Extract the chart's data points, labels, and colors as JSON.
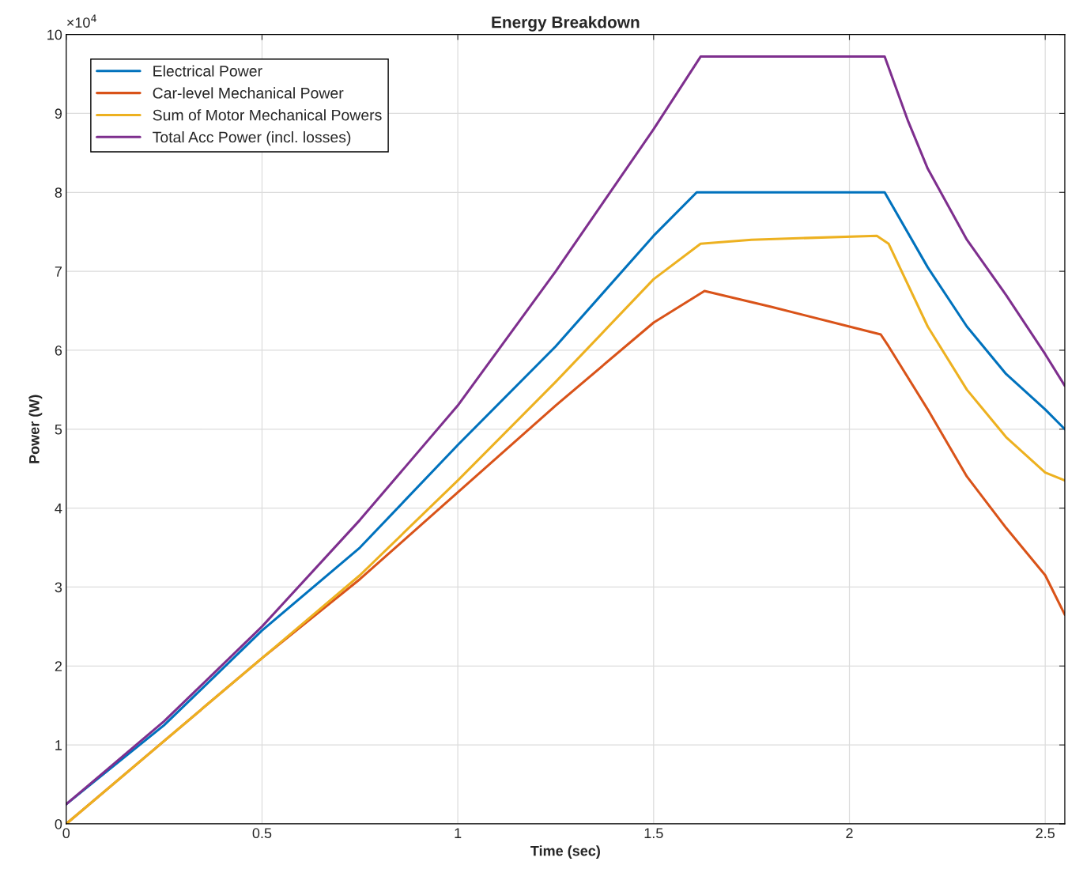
{
  "chart_data": {
    "type": "line",
    "title": "Energy Breakdown",
    "xlabel": "Time (sec)",
    "ylabel": "Power (W)",
    "annotations": [
      "×10$^{4}$"
    ],
    "xlim": [
      0,
      2.55
    ],
    "xticks": [
      0,
      0.5,
      1,
      1.5,
      2,
      2.5
    ],
    "ylim": [
      0,
      10
    ],
    "yticks": [
      0,
      1,
      2,
      3,
      4,
      5,
      6,
      7,
      8,
      9,
      10
    ],
    "grid": true,
    "legend": "top left",
    "line_style": "solid",
    "marker": "none",
    "series": [
      {
        "name": "Electrical Power",
        "color": "#0072bd",
        "x": [
          0,
          0.25,
          0.5,
          0.75,
          1.0,
          1.25,
          1.5,
          1.61,
          2.09,
          2.2,
          2.3,
          2.4,
          2.5,
          2.55
        ],
        "values": [
          0.25,
          1.25,
          2.45,
          3.5,
          4.8,
          6.05,
          7.45,
          8.0,
          8.0,
          7.05,
          6.3,
          5.7,
          5.25,
          5.0
        ]
      },
      {
        "name": "Car-level Mechanical Power",
        "color": "#d95319",
        "x": [
          0,
          0.25,
          0.5,
          0.75,
          1.0,
          1.25,
          1.5,
          1.63,
          1.8,
          2.0,
          2.08,
          2.1,
          2.2,
          2.3,
          2.4,
          2.5,
          2.55
        ],
        "values": [
          0,
          1.05,
          2.1,
          3.1,
          4.2,
          5.3,
          6.35,
          6.75,
          6.55,
          6.3,
          6.2,
          6.05,
          5.25,
          4.4,
          3.75,
          3.15,
          2.65
        ]
      },
      {
        "name": "Sum of Motor Mechanical Powers",
        "color": "#edb120",
        "x": [
          0,
          0.25,
          0.5,
          0.75,
          1.0,
          1.25,
          1.5,
          1.62,
          1.75,
          2.07,
          2.1,
          2.2,
          2.3,
          2.4,
          2.5,
          2.55
        ],
        "values": [
          0,
          1.05,
          2.1,
          3.15,
          4.35,
          5.6,
          6.9,
          7.35,
          7.4,
          7.45,
          7.35,
          6.3,
          5.5,
          4.9,
          4.45,
          4.35
        ]
      },
      {
        "name": "Total Acc Power (incl. losses)",
        "color": "#7e2f8e",
        "x": [
          0,
          0.25,
          0.5,
          0.75,
          1.0,
          1.25,
          1.5,
          1.62,
          2.09,
          2.15,
          2.2,
          2.3,
          2.4,
          2.5,
          2.55
        ],
        "values": [
          0.25,
          1.3,
          2.5,
          3.85,
          5.3,
          7.0,
          8.8,
          9.72,
          9.72,
          8.9,
          8.3,
          7.4,
          6.7,
          5.95,
          5.55
        ]
      }
    ]
  }
}
